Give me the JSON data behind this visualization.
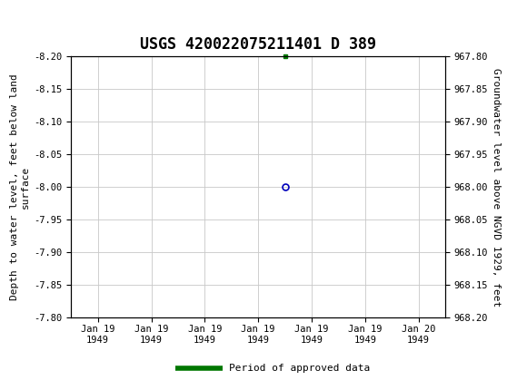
{
  "title": "USGS 420022075211401 D 389",
  "ylabel_left": "Depth to water level, feet below land\nsurface",
  "ylabel_right": "Groundwater level above NGVD 1929, feet",
  "ylim_left": [
    -8.2,
    -7.8
  ],
  "ylim_right": [
    967.8,
    968.2
  ],
  "yticks_left": [
    -8.2,
    -8.15,
    -8.1,
    -8.05,
    -8.0,
    -7.95,
    -7.9,
    -7.85,
    -7.8
  ],
  "ytick_labels_left": [
    "-8.20",
    "-8.15",
    "-8.10",
    "-8.05",
    "-8.00",
    "-7.95",
    "-7.90",
    "-7.85",
    "-7.80"
  ],
  "yticks_right": [
    967.8,
    967.85,
    967.9,
    967.95,
    968.0,
    968.05,
    968.1,
    968.15,
    968.2
  ],
  "ytick_labels_right": [
    "967.80",
    "967.85",
    "967.90",
    "967.95",
    "968.00",
    "968.05",
    "968.10",
    "968.15",
    "968.20"
  ],
  "header_bg_color": "#1a6b3c",
  "plot_bg_color": "#ffffff",
  "grid_color": "#c8c8c8",
  "data_x": "1949-01-19 12:00:00",
  "data_y_left": -8.0,
  "marker_color": "#0000bb",
  "marker_size": 5,
  "legend_line_color": "#007700",
  "legend_label": "Period of approved data",
  "font_family": "monospace",
  "title_fontsize": 12,
  "axis_label_fontsize": 8,
  "tick_label_fontsize": 7.5,
  "xtick_labels": [
    "Jan 19\n1949",
    "Jan 19\n1949",
    "Jan 19\n1949",
    "Jan 19\n1949",
    "Jan 19\n1949",
    "Jan 19\n1949",
    "Jan 20\n1949"
  ],
  "xtick_positions": [
    0,
    1,
    2,
    3,
    4,
    5,
    6
  ],
  "data_x_pos": 3.5,
  "tick_mark_x_pos": 3.5
}
